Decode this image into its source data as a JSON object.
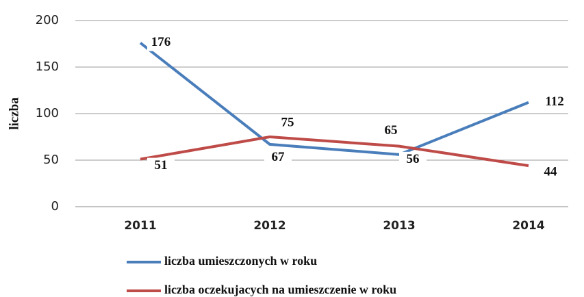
{
  "chart_data": {
    "type": "line",
    "y_label": "liczba",
    "categories": [
      "2011",
      "2012",
      "2013",
      "2014"
    ],
    "series": [
      {
        "name": "liczba umieszczonych w roku",
        "color": "#4a7ebb",
        "values": [
          176,
          67,
          56,
          112
        ]
      },
      {
        "name": "liczba oczekujacych na umieszczenie w roku",
        "color": "#be4b48",
        "values": [
          51,
          75,
          65,
          44
        ]
      }
    ],
    "ylim": [
      0,
      200
    ],
    "yticks": [
      0,
      50,
      100,
      150,
      200
    ],
    "grid": true,
    "legend": "bottom"
  }
}
